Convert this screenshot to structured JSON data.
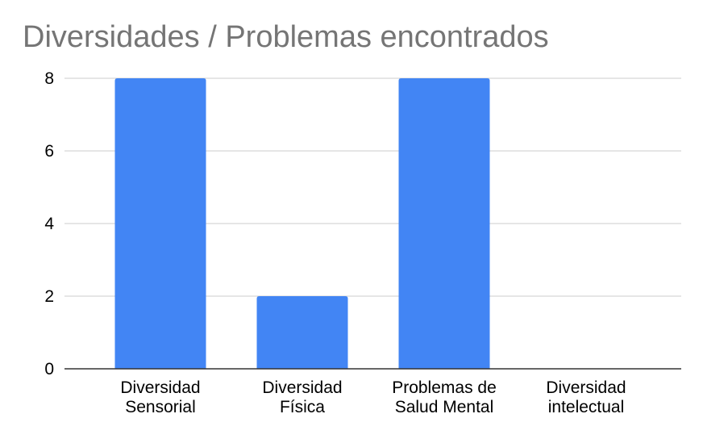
{
  "chart_data": {
    "type": "bar",
    "title": "Diversidades / Problemas encontrados",
    "categories": [
      [
        "Diversidad",
        "Sensorial"
      ],
      [
        "Diversidad",
        "Física"
      ],
      [
        "Problemas de",
        "Salud Mental"
      ],
      [
        "Diversidad",
        "intelectual"
      ]
    ],
    "values": [
      8,
      2,
      8,
      0
    ],
    "ylim": [
      0,
      8
    ],
    "yticks": [
      "0",
      "2",
      "4",
      "6",
      "8"
    ],
    "grid": true,
    "legend": "none",
    "colors": {
      "bar": "#4285f4",
      "title": "#757575",
      "grid": "#cccccc",
      "axis": "#333333"
    }
  }
}
